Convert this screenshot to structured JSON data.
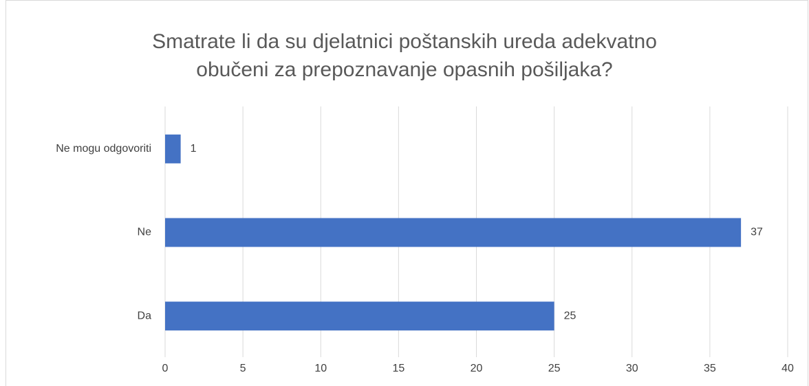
{
  "chart_data": {
    "type": "bar",
    "orientation": "horizontal",
    "title": [
      "Smatrate li da su djelatnici poštanskih ureda adekvatno",
      "obučeni za prepoznavanje opasnih pošiljaka?"
    ],
    "categories": [
      "Ne mogu odgovoriti",
      "Ne",
      "Da"
    ],
    "values": [
      1,
      37,
      25
    ],
    "color": "#4472c4",
    "xlim": [
      0,
      40
    ],
    "xticks": [
      0,
      5,
      10,
      15,
      20,
      25,
      30,
      35,
      40
    ],
    "grid": true
  }
}
